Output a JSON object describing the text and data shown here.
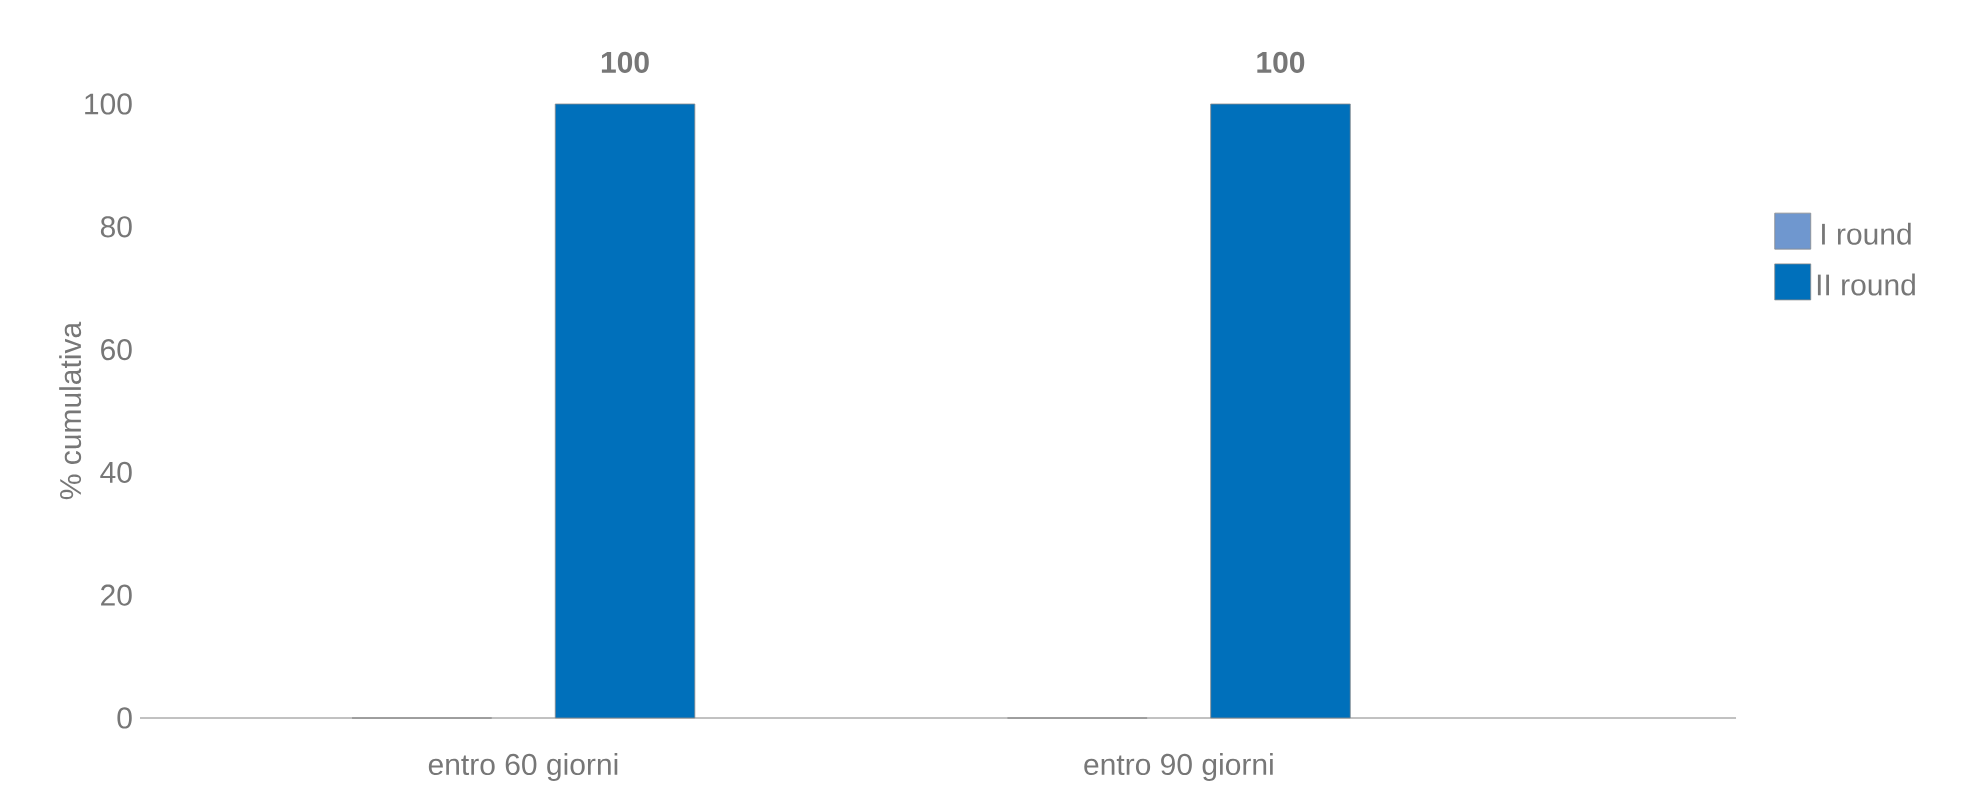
{
  "chart_data": {
    "type": "bar",
    "ylabel": "% cumulativa",
    "categories": [
      "entro 60 giorni",
      "entro 90 giorni"
    ],
    "series": [
      {
        "name": "I round",
        "color": "#6f97cf",
        "values": [
          0,
          0
        ]
      },
      {
        "name": "II round",
        "color": "#0070bb",
        "values": [
          100,
          100
        ],
        "value_labels": [
          "100",
          "100"
        ]
      }
    ],
    "ylim": [
      0,
      100
    ],
    "yticks": [
      0,
      20,
      40,
      60,
      80,
      100
    ],
    "grid": false,
    "legend": "right"
  }
}
